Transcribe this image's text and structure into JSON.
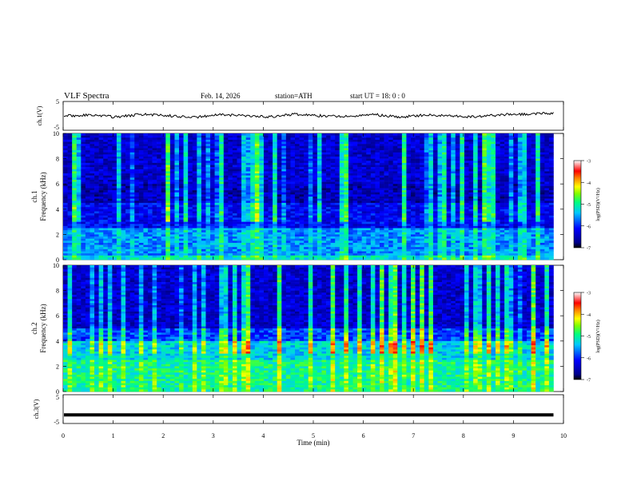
{
  "header": {
    "title": "VLF  Spectra",
    "date": "Feb. 14, 2026",
    "station": "station=ATH",
    "start_ut": "start  UT  =   18: 0  : 0"
  },
  "chart_data": [
    {
      "type": "line",
      "panel": "ch1-waveform",
      "ylabel": "ch.1(V)",
      "yticks": [
        "5",
        "-5"
      ],
      "ylim": [
        -5,
        5
      ],
      "xlim": [
        0,
        10
      ],
      "series": [
        {
          "values": [
            0.0,
            0.3,
            -0.4,
            0.5,
            0.1,
            -0.6,
            0.4,
            0.2,
            -0.3,
            0.6,
            0.0,
            -0.2,
            0.5,
            -0.5,
            0.3,
            0.1,
            -0.4,
            0.4,
            0.7,
            0.9
          ]
        }
      ]
    },
    {
      "type": "heatmap",
      "panel": "ch1-spectrogram",
      "ylabel_line1": "ch.1",
      "ylabel_line2": "Frequency  (kHz)",
      "yticks": [
        "0",
        "2",
        "4",
        "6",
        "8",
        "10"
      ],
      "ylim": [
        0,
        10
      ],
      "xlim": [
        0,
        9.8
      ],
      "colorbar": {
        "label": "log(PSD)(V²/Hz)",
        "ticks": [
          "-3",
          "-4",
          "-5",
          "-6",
          "-7"
        ],
        "range": [
          -7,
          -3
        ]
      }
    },
    {
      "type": "heatmap",
      "panel": "ch2-spectrogram",
      "ylabel_line1": "ch.2",
      "ylabel_line2": "Frequency  (kHz)",
      "yticks": [
        "0",
        "2",
        "4",
        "6",
        "8",
        "10"
      ],
      "ylim": [
        0,
        10
      ],
      "xlim": [
        0,
        9.8
      ],
      "colorbar": {
        "label": "log(PSD)(V²/Hz)",
        "ticks": [
          "-3",
          "-4",
          "-5",
          "-6",
          "-7"
        ],
        "range": [
          -7,
          -3
        ]
      }
    },
    {
      "type": "line",
      "panel": "ch3-waveform",
      "ylabel": "ch.3(V)",
      "yticks": [
        "5",
        "-5"
      ],
      "ylim": [
        -5,
        5
      ],
      "xlim": [
        0,
        10
      ],
      "series": [
        {
          "values": [
            -2.0,
            -2.0,
            -2.0,
            -2.0,
            -2.0,
            -2.0,
            -2.0,
            -2.0,
            -2.0,
            -2.0,
            -2.0
          ]
        }
      ]
    }
  ],
  "xaxis": {
    "label": "Time  (min)",
    "ticks": [
      "0",
      "1",
      "2",
      "3",
      "4",
      "5",
      "6",
      "7",
      "8",
      "9",
      "10"
    ]
  }
}
